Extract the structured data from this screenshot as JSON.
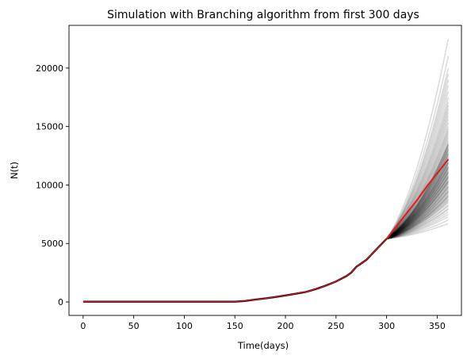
{
  "chart_data": {
    "type": "line",
    "title": "Simulation with Branching algorithm from first 300 days",
    "xlabel": "Time(days)",
    "ylabel": "N(t)",
    "xlim": [
      -14,
      374
    ],
    "ylim": [
      -1150,
      23650
    ],
    "xticks": [
      0,
      50,
      100,
      150,
      200,
      250,
      300,
      350
    ],
    "yticks": [
      0,
      5000,
      10000,
      15000,
      20000
    ],
    "grid": false,
    "legend": "none",
    "colors": {
      "mean": "#e41a1c",
      "simulations": "#000000",
      "axes": "#000000"
    },
    "history": {
      "x": [
        0,
        50,
        100,
        150,
        160,
        170,
        180,
        190,
        200,
        210,
        220,
        230,
        240,
        250,
        260,
        265,
        270,
        280,
        290,
        300
      ],
      "y": [
        20,
        20,
        20,
        20,
        80,
        200,
        300,
        420,
        560,
        700,
        850,
        1100,
        1400,
        1750,
        2200,
        2500,
        3000,
        3600,
        4500,
        5400
      ]
    },
    "simulations": {
      "start_x": 300,
      "start_y": 5400,
      "end_x": 361,
      "count": 100,
      "final_values": [
        6700,
        7000,
        7300,
        7500,
        7700,
        7900,
        8000,
        8200,
        8300,
        8500,
        8600,
        8700,
        8800,
        8900,
        9000,
        9100,
        9200,
        9300,
        9400,
        9500,
        9600,
        9700,
        9800,
        9900,
        10000,
        10100,
        10200,
        10300,
        10400,
        10500,
        10600,
        10700,
        10800,
        10900,
        11000,
        11100,
        11200,
        11300,
        11400,
        11500,
        11600,
        11700,
        11800,
        11900,
        12000,
        12100,
        12200,
        12300,
        12400,
        12500,
        12600,
        12700,
        12800,
        12900,
        13000,
        13100,
        13200,
        13300,
        13400,
        13500,
        13600,
        13800,
        14000,
        14200,
        14400,
        14600,
        14800,
        15000,
        15300,
        15600,
        15900,
        16200,
        16500,
        16800,
        17100,
        17500,
        18000,
        18500,
        19000,
        19500,
        20000,
        21000,
        22500,
        9050,
        9450,
        9850,
        10250,
        10650,
        11050,
        11450,
        11850,
        12250,
        12650,
        13050,
        13450,
        10350,
        10750,
        11150,
        11550,
        11950
      ]
    },
    "mean": {
      "x": [
        300,
        310,
        320,
        330,
        340,
        350,
        361
      ],
      "y": [
        5400,
        6500,
        7600,
        8700,
        9900,
        11000,
        12200
      ]
    }
  }
}
